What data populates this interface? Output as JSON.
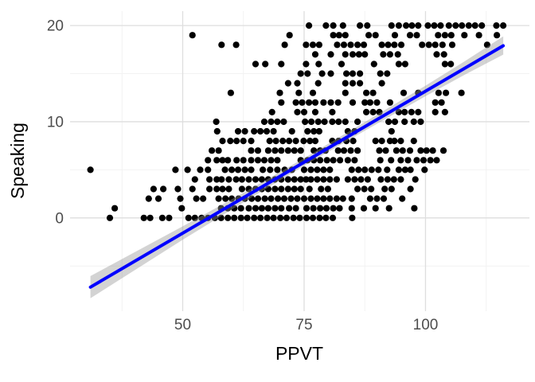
{
  "chart_data": {
    "type": "scatter",
    "title": "",
    "xlabel": "PPVT",
    "ylabel": "Speaking",
    "xlim": [
      26.8,
      121.4
    ],
    "ylim": [
      -9.7,
      21.5
    ],
    "grid": "major+minor, ggplot-minimal style, no axis ticks, no panel border",
    "legend": "none",
    "x_ticks": {
      "major": [
        50,
        75,
        100
      ],
      "labels": [
        "50",
        "75",
        "100"
      ],
      "minor": [
        37.5,
        62.5,
        87.5,
        112.5
      ]
    },
    "y_ticks": {
      "major": [
        0,
        10,
        20
      ],
      "labels": [
        "0",
        "10",
        "20"
      ],
      "minor": [
        -5,
        5,
        15
      ]
    },
    "colors": {
      "point": "#000000",
      "smooth_line": "#0000FF",
      "ci_band": "rgba(150,150,150,0.42)",
      "grid_major": "#DEDEDE",
      "grid_minor": "#F2F2F2",
      "tick_label": "#4D4D4D",
      "axis_title": "#000000",
      "background": "#FFFFFF"
    },
    "point_radius": 4.1,
    "points_by_y": {
      "20": [
        76,
        79.5,
        81,
        83,
        86.5,
        88,
        93,
        94.5,
        96,
        97.2,
        98.5,
        100.5,
        101.8,
        103.1,
        104.8,
        106.2,
        107.5,
        108.9,
        110.2,
        111.6,
        114.6,
        116
      ],
      "19": [
        52,
        72,
        81,
        82.2,
        83.5,
        88.3,
        89.7,
        93.7,
        96.8,
        98.2,
        102.6,
        104,
        105.3,
        108,
        111,
        114.7
      ],
      "18": [
        58,
        61,
        71,
        75.4,
        76.8,
        78.1,
        81.8,
        83.2,
        84.6,
        86,
        87.3,
        91,
        92.3,
        93.6,
        95,
        99.3,
        100.7,
        102,
        103.5,
        105.5,
        112.7
      ],
      "17": [
        77.3,
        80.5,
        83.5,
        85,
        86.3,
        87.5,
        91.3,
        92.7,
        94.3,
        102.3,
        103.8
      ],
      "16": [
        65,
        67,
        70.3,
        75.4,
        78,
        82.7,
        89.4,
        94.5,
        95.8,
        104,
        105.2
      ],
      "15": [
        74.3,
        75.7,
        78.7,
        80.5,
        83.7,
        85,
        86.5,
        90.7,
        92.1
      ],
      "14": [
        71.7,
        73.6,
        77.9,
        83.5,
        85,
        86.5,
        91
      ],
      "13": [
        59.9,
        70,
        73.9,
        76.8,
        83.5,
        87.8,
        89.2,
        95.5,
        98.5,
        102.7,
        104.2,
        107.4
      ],
      "12": [
        70.3,
        73.3,
        74.6,
        76,
        77.3,
        79,
        80.5,
        82,
        85,
        87.5,
        88.6,
        90,
        92.7,
        102,
        103.3
      ],
      "11": [
        68.4,
        73.6,
        75,
        77.3,
        80.8,
        87.8,
        89.2,
        90.5,
        94.5,
        95.7,
        97.1,
        98.5,
        102,
        104
      ],
      "10": [
        56.9,
        66.8,
        68.2,
        69.5,
        70.8,
        75.2,
        76.5,
        77.9,
        79.2,
        80.8,
        82.1,
        83.5,
        86,
        92.4,
        93.7,
        95.7,
        97.6,
        99
      ],
      "9": [
        57.1,
        61.4,
        62.8,
        64.7,
        66,
        67.3,
        68.7,
        72.5,
        75.7,
        77,
        78.1,
        84,
        85.4,
        93
      ],
      "8": [
        58.2,
        59.8,
        61.1,
        62.5,
        64.1,
        67.9,
        69.2,
        70.6,
        71.9,
        73.3,
        74.9,
        76.2,
        77.3,
        80.8,
        82.1,
        83.7,
        85.1,
        89.7,
        91,
        92.7,
        93.6,
        94.9,
        97.6
      ],
      "7": [
        56,
        57.4,
        64.1,
        65.5,
        67.6,
        69,
        70.3,
        71.7,
        73,
        74.3,
        77,
        78.3,
        79.4,
        82,
        83.2,
        84.6,
        86,
        90.5,
        91.8,
        94,
        95.3,
        96.8,
        99,
        100.2,
        101.5,
        103.7
      ],
      "6": [
        55.2,
        57,
        58.2,
        59.3,
        61.1,
        62.5,
        64.1,
        65.5,
        66.8,
        68.2,
        69.5,
        74.3,
        75.7,
        77,
        78.3,
        79.7,
        81,
        82.4,
        84,
        85.4,
        90.7,
        92.9,
        94.9,
        96.4,
        98.2,
        99.6,
        101,
        102.3
      ],
      "5": [
        31,
        48.5,
        51,
        53.6,
        55.2,
        58.7,
        60.1,
        61.4,
        62.8,
        64.1,
        66.5,
        68,
        69.5,
        71,
        72.5,
        75,
        76.4,
        77.7,
        79,
        80.3,
        84.8,
        86.2,
        87.5,
        88.9,
        90.3,
        92.1,
        94.5,
        95.8,
        96.9,
        99.8
      ],
      "4": [
        52.5,
        55.5,
        57,
        58,
        59.5,
        61,
        62.2,
        63.6,
        65,
        66.3,
        67.6,
        69,
        70.3,
        71.7,
        73,
        74.3,
        75.4,
        76.4,
        77.7,
        79,
        80.3,
        81.7,
        84,
        85.4,
        86.7,
        88.1,
        90.8,
        92.2,
        93.5,
        94.9,
        97.9
      ],
      "3": [
        44,
        46,
        49,
        52,
        55.5,
        57,
        58.2,
        59.5,
        62.2,
        63.6,
        65,
        66.3,
        67.6,
        69,
        70.3,
        71.7,
        73,
        74.3,
        76.1,
        78.5,
        79.9,
        86,
        87.4,
        88.8,
        91.6,
        93,
        96.9
      ],
      "2": [
        43,
        45,
        49.5,
        52.8,
        54.2,
        57.4,
        58.8,
        60.1,
        61.5,
        62.8,
        64.2,
        65.5,
        66.9,
        68.2,
        69.6,
        70.9,
        72.3,
        73.6,
        75,
        76.4,
        77.7,
        79,
        80.3,
        81.7,
        83,
        84.8,
        88.6,
        90,
        91.4,
        95.2
      ],
      "1": [
        36,
        49.8,
        57.9,
        59.3,
        60.6,
        62,
        63.6,
        65,
        66.3,
        67.6,
        69,
        70.3,
        71.9,
        73.3,
        75.5,
        76.9,
        78.3,
        79.6,
        81,
        82.3,
        84.8,
        87.3,
        89.7,
        92.5,
        97.7
      ],
      "0": [
        35,
        42,
        43.3,
        45.8,
        47.2,
        51.2,
        52.5,
        53.9,
        55.2,
        56.6,
        57.9,
        59.3,
        60.6,
        62,
        63.3,
        64.7,
        66,
        67.4,
        68.7,
        70.1,
        71.4,
        72.8,
        74.1,
        75.5,
        76.8,
        78.2,
        79.5,
        80.9,
        84.9
      ]
    },
    "smooth_line": {
      "x": [
        31,
        116
      ],
      "y": [
        -7.2,
        17.9
      ]
    },
    "ci_band": {
      "upper": [
        [
          31,
          -6.05
        ],
        [
          50,
          -0.88
        ],
        [
          62.5,
          2.61
        ],
        [
          75,
          6.21
        ],
        [
          87.5,
          9.96
        ],
        [
          100,
          13.75
        ],
        [
          108,
          16.27
        ],
        [
          116,
          18.88
        ]
      ],
      "lower": [
        [
          31,
          -8.35
        ],
        [
          50,
          -2.28
        ],
        [
          62.5,
          1.61
        ],
        [
          75,
          5.41
        ],
        [
          87.5,
          9.06
        ],
        [
          100,
          12.65
        ],
        [
          108,
          14.87
        ],
        [
          116,
          16.98
        ]
      ]
    }
  }
}
